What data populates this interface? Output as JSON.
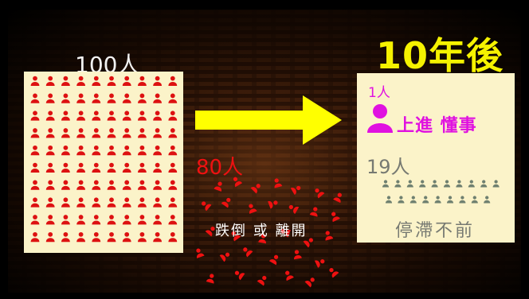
{
  "left": {
    "count_label": "100人",
    "people_count": 100,
    "person_color": "#dd1111",
    "panel_color": "#fbf3c9"
  },
  "title": "10年後",
  "title_color": "#f5f200",
  "arrow_color": "#ffff00",
  "left_behind": {
    "count_label": "80人",
    "caption": "跌倒 或 離開",
    "color": "#ee1111"
  },
  "right": {
    "top_count_label": "1人",
    "top_label": "上進 懂事",
    "top_color": "#e011e0",
    "middle_count_label": "19人",
    "middle_people_count": 19,
    "middle_color": "#6f8070",
    "bottom_label": "停滯不前"
  }
}
